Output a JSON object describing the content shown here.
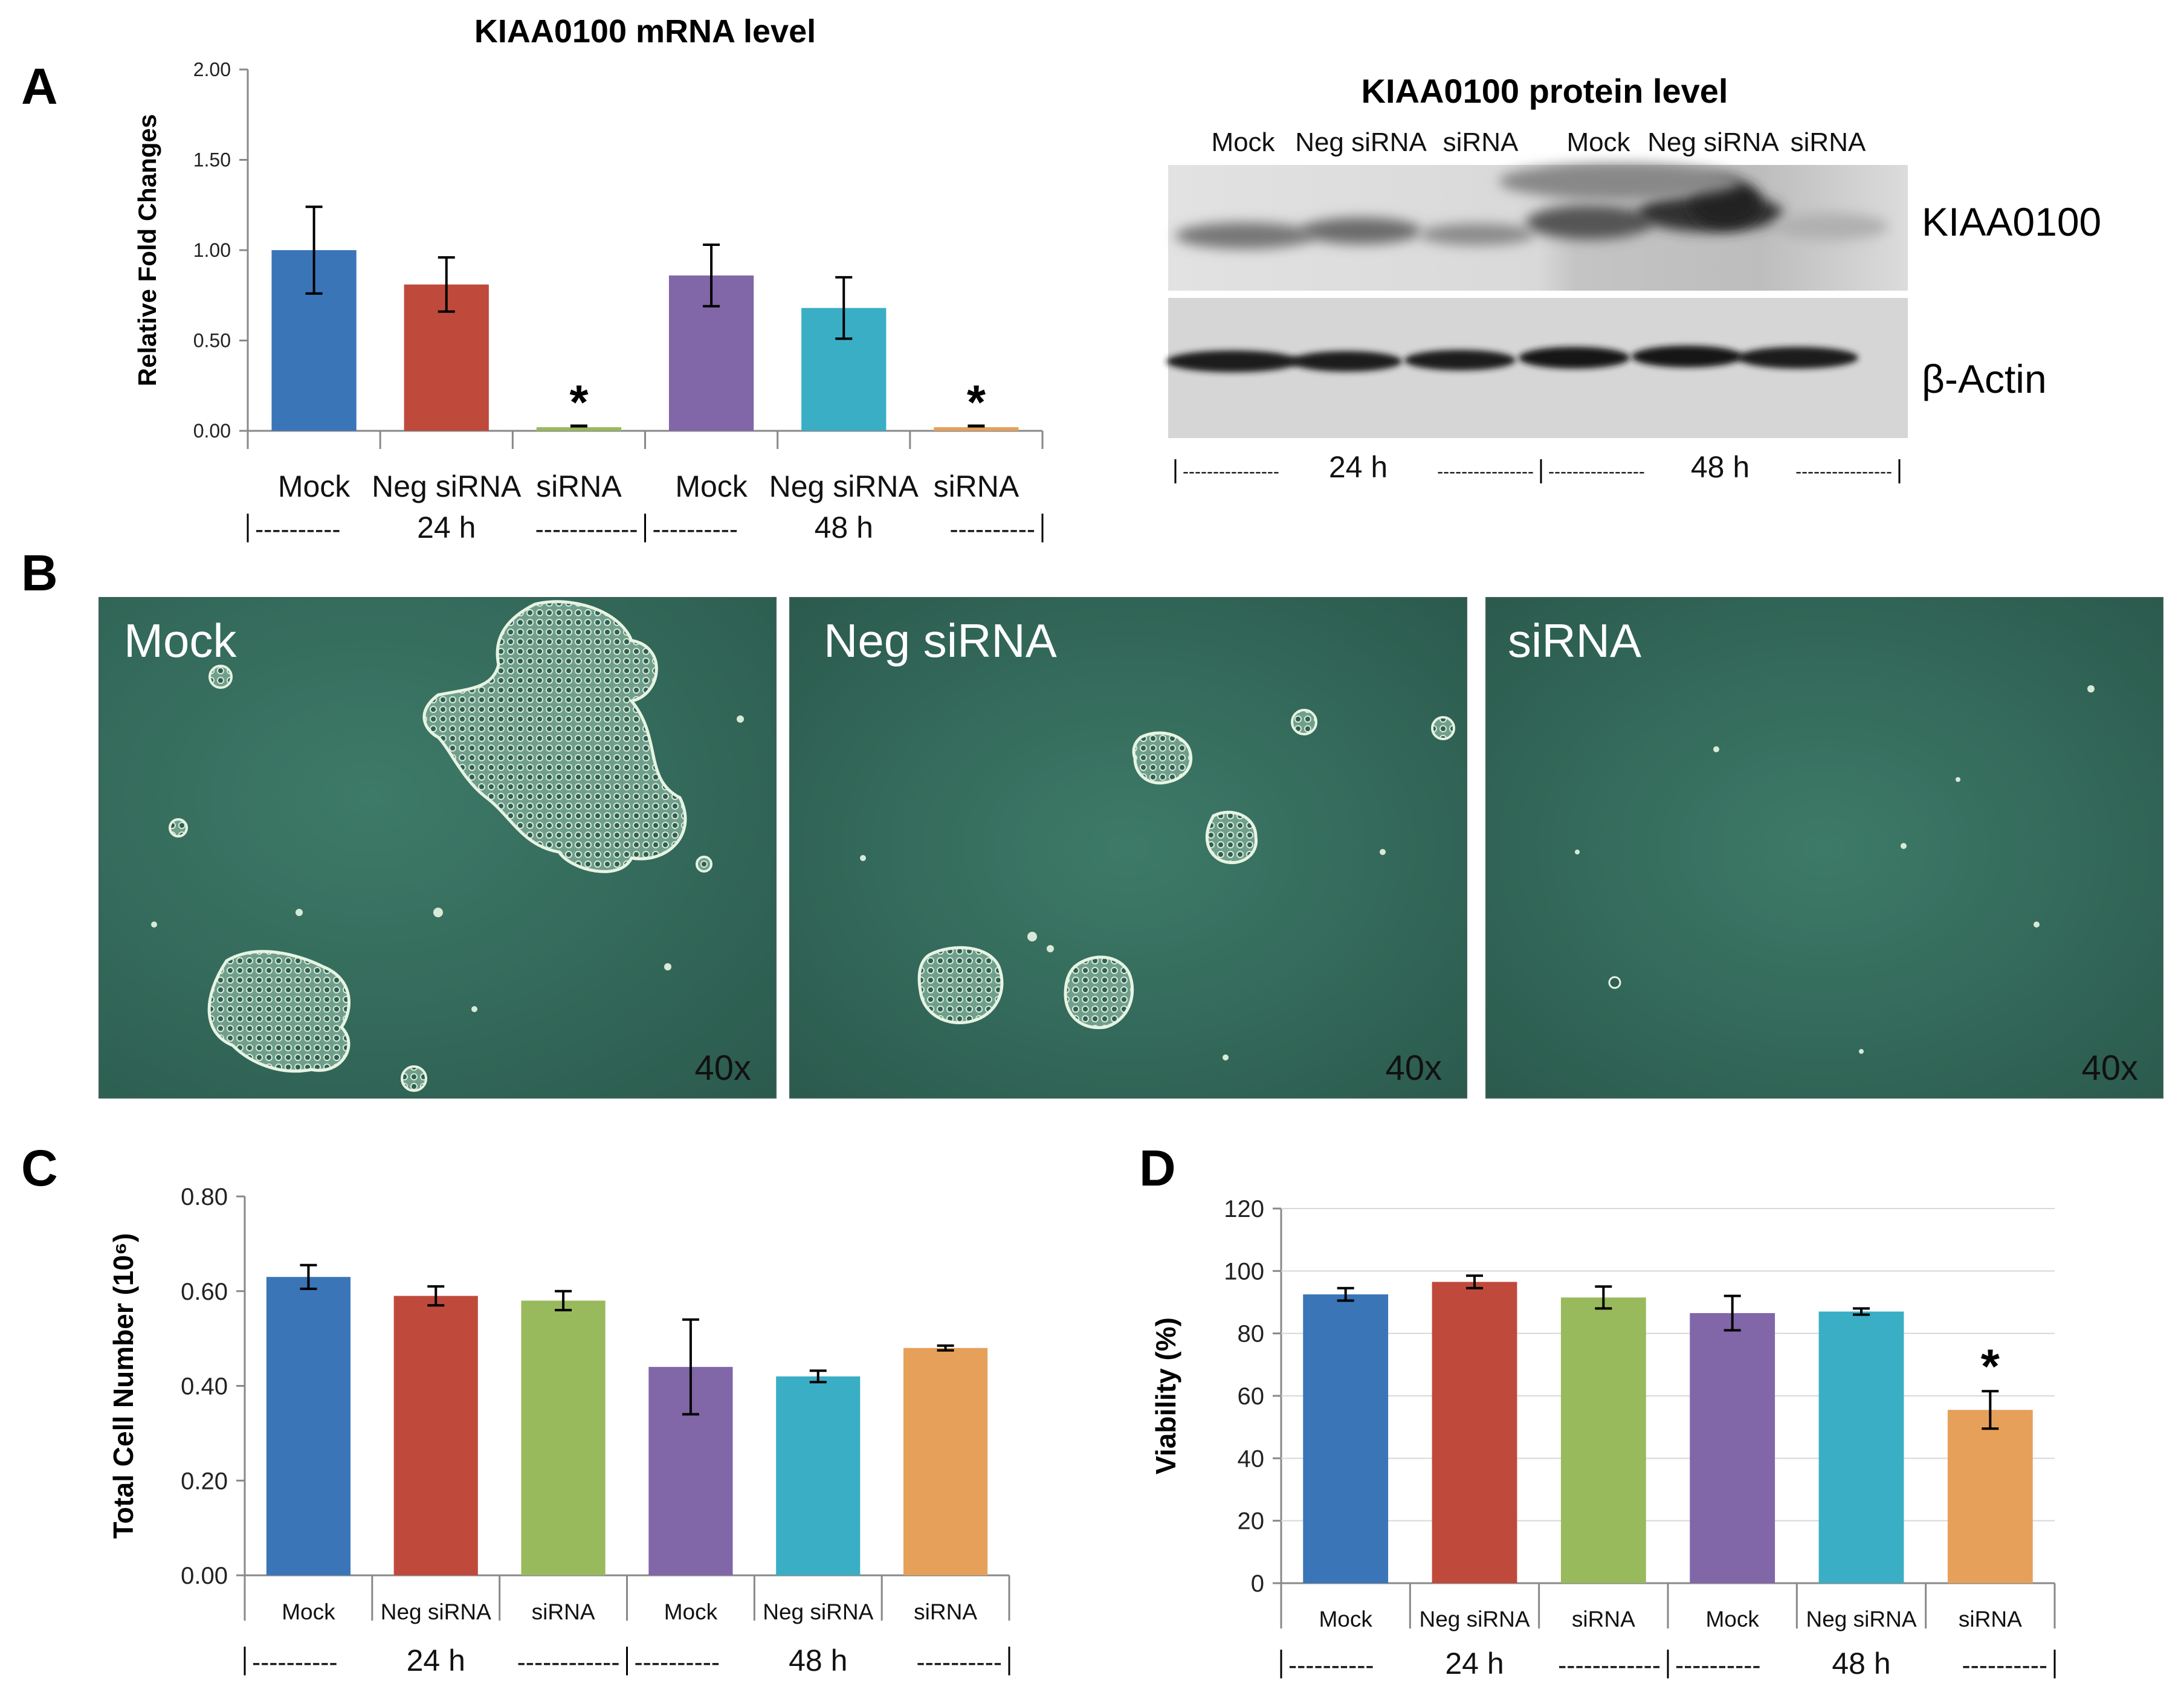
{
  "panels": {
    "a": "A",
    "b": "B",
    "c": "C",
    "d": "D"
  },
  "palette": {
    "mock24": "#3a75b8",
    "neg24": "#bf4a3c",
    "sirna24": "#98b95c",
    "mock48": "#8166a8",
    "neg48": "#3aaec5",
    "sirna48": "#e6a05a"
  },
  "chart_data": [
    {
      "id": "mrna",
      "type": "bar",
      "title": "KIAA0100 mRNA level",
      "ylabel": "Relative Fold Changes",
      "ylim": [
        0,
        2
      ],
      "yticks": [
        "0.00",
        "0.50",
        "1.00",
        "1.50",
        "2.00"
      ],
      "categories": [
        "Mock",
        "Neg siRNA",
        "siRNA",
        "Mock",
        "Neg siRNA",
        "siRNA"
      ],
      "values": [
        1.0,
        0.81,
        0.02,
        0.86,
        0.68,
        0.02
      ],
      "errors": [
        0.24,
        0.15,
        0.0,
        0.17,
        0.17,
        0.0
      ],
      "significant": [
        false,
        false,
        true,
        false,
        false,
        true
      ],
      "star": "*",
      "groups": [
        {
          "label": "24 h",
          "left_dash": "----------",
          "right_dash": "------------"
        },
        {
          "label": "48 h",
          "left_dash": "----------",
          "right_dash": "----------"
        }
      ]
    },
    {
      "id": "cellcount",
      "type": "bar",
      "title": "",
      "ylabel": "Total Cell Number (10⁶)",
      "ylim": [
        0,
        0.8
      ],
      "yticks": [
        "0.00",
        "0.20",
        "0.40",
        "0.60",
        "0.80"
      ],
      "categories": [
        "Mock",
        "Neg siRNA",
        "siRNA",
        "Mock",
        "Neg siRNA",
        "siRNA"
      ],
      "values": [
        0.63,
        0.59,
        0.58,
        0.44,
        0.42,
        0.48
      ],
      "errors": [
        0.025,
        0.02,
        0.02,
        0.1,
        0.012,
        0.005
      ],
      "significant": [
        false,
        false,
        false,
        false,
        false,
        false
      ],
      "groups": [
        {
          "label": "24 h",
          "left_dash": "----------",
          "right_dash": "------------"
        },
        {
          "label": "48 h",
          "left_dash": "----------",
          "right_dash": "----------"
        }
      ]
    },
    {
      "id": "viability",
      "type": "bar",
      "title": "",
      "ylabel": "Viability (%)",
      "ylim": [
        0,
        120
      ],
      "yticks": [
        "0",
        "20",
        "40",
        "60",
        "80",
        "100",
        "120"
      ],
      "categories": [
        "Mock",
        "Neg siRNA",
        "siRNA",
        "Mock",
        "Neg siRNA",
        "siRNA"
      ],
      "values": [
        92.5,
        96.5,
        91.5,
        86.5,
        87,
        55.5
      ],
      "errors": [
        2,
        2,
        3.5,
        5.5,
        1,
        6
      ],
      "significant": [
        false,
        false,
        false,
        false,
        false,
        true
      ],
      "star": "*",
      "groups": [
        {
          "label": "24 h",
          "left_dash": "----------",
          "right_dash": "------------"
        },
        {
          "label": "48 h",
          "left_dash": "----------",
          "right_dash": "----------"
        }
      ]
    }
  ],
  "western": {
    "title": "KIAA0100 protein level",
    "lanes": [
      "Mock",
      "Neg siRNA",
      "siRNA",
      "Mock",
      "Neg siRNA",
      "siRNA"
    ],
    "band_labels": [
      "KIAA0100",
      "β-Actin"
    ],
    "groups": [
      {
        "label": "24 h",
        "left_dash": "----------------",
        "right_dash": "----------------"
      },
      {
        "label": "48 h",
        "left_dash": "----------------",
        "right_dash": "----------------"
      }
    ]
  },
  "microscopy": [
    {
      "label": "Mock",
      "magnification": "40x"
    },
    {
      "label": "Neg siRNA",
      "magnification": "40x"
    },
    {
      "label": "siRNA",
      "magnification": "40x"
    }
  ]
}
